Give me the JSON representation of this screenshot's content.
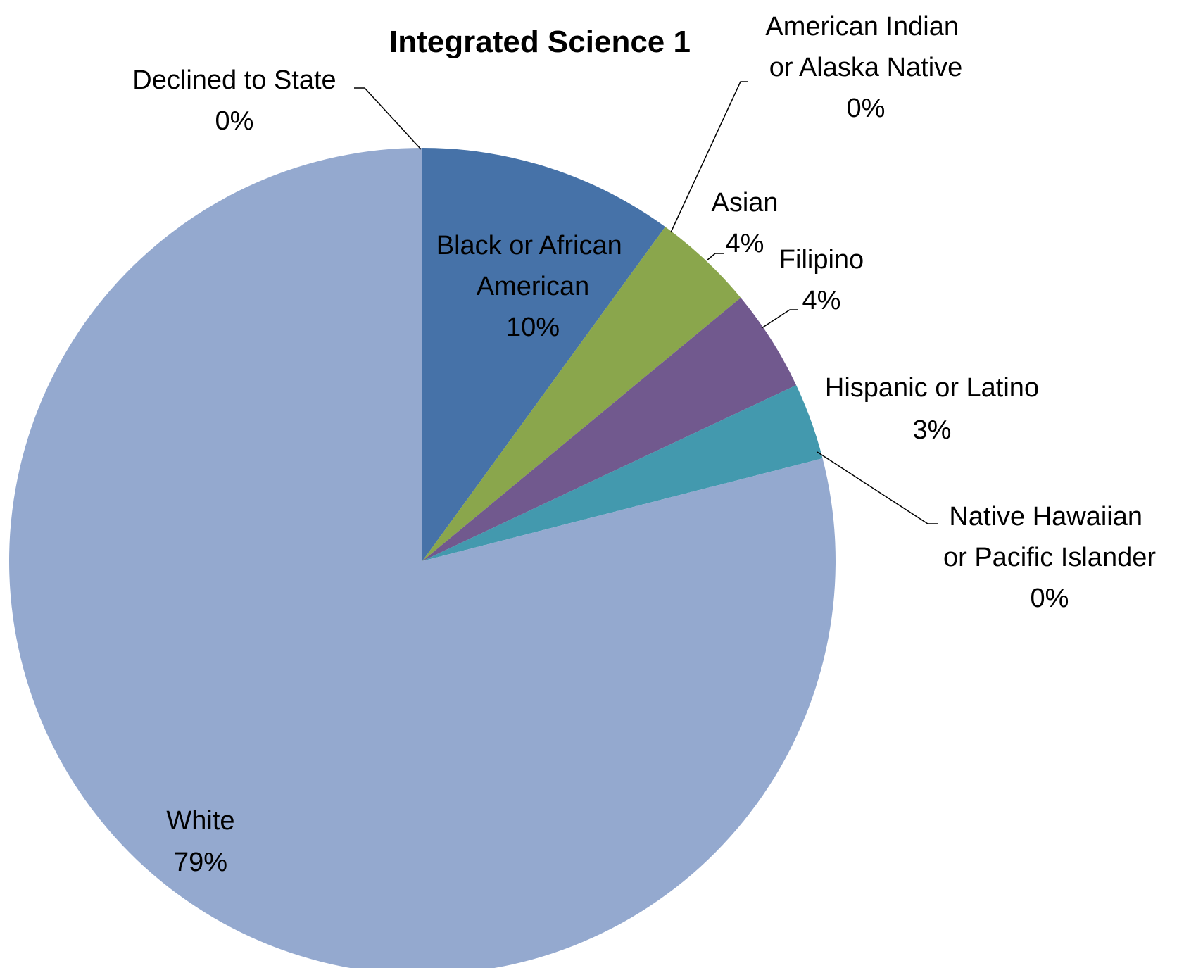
{
  "chart_data": {
    "type": "pie",
    "title": "Integrated Science 1",
    "slices": [
      {
        "name": "Black or African American",
        "value": 10,
        "pct_label": "10%",
        "color": "#4672A8"
      },
      {
        "name": "Asian",
        "value": 4,
        "pct_label": "4%",
        "color": "#8AA64C"
      },
      {
        "name": "Filipino",
        "value": 4,
        "pct_label": "4%",
        "color": "#71598E"
      },
      {
        "name": "Hispanic or Latino",
        "value": 3,
        "pct_label": "3%",
        "color": "#4399AE"
      },
      {
        "name": "Native Hawaiian or Pacific Islander",
        "value": 0,
        "pct_label": "0%",
        "color": "#DB843D"
      },
      {
        "name": "White",
        "value": 79,
        "pct_label": "79%",
        "color": "#94A9CF"
      },
      {
        "name": "Declined to State",
        "value": 0,
        "pct_label": "0%",
        "color": "#A0B05A"
      },
      {
        "name": "American Indian or Alaska Native",
        "value": 0,
        "pct_label": "0%",
        "color": "#AA4643"
      }
    ],
    "legend": "none"
  }
}
